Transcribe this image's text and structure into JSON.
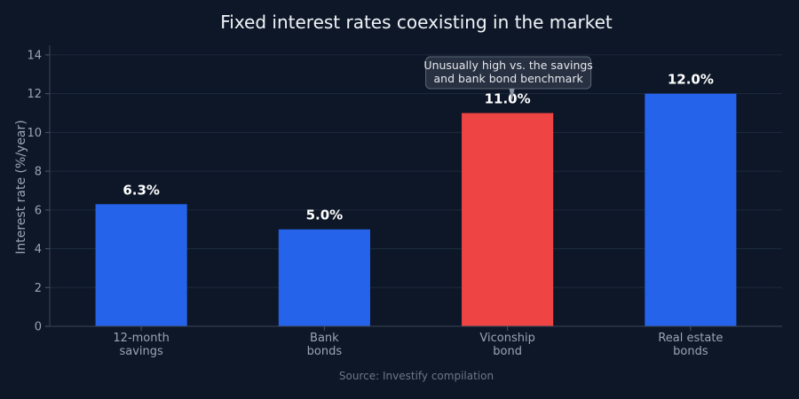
{
  "colors": {
    "background": "#0d1727",
    "default_bar": "#2563eb",
    "highlight_bar": "#ef4444",
    "grid": "#1c2a3d",
    "text": "#9aa4b2",
    "title": "#f1f5f9",
    "annotation_box": "#2a3444"
  },
  "chart_data": {
    "type": "bar",
    "title": "Fixed interest rates coexisting in the market",
    "xlabel": "",
    "ylabel": "Interest rate (%/year)",
    "ylim": [
      0,
      14.5
    ],
    "yticks": [
      0,
      2,
      4,
      6,
      8,
      10,
      12,
      14
    ],
    "grid": true,
    "categories": [
      [
        "12-month",
        "savings"
      ],
      [
        "Bank",
        "bonds"
      ],
      [
        "Viconship",
        "bond"
      ],
      [
        "Real estate",
        "bonds"
      ]
    ],
    "values": [
      6.3,
      5.0,
      11.0,
      12.0
    ],
    "value_labels": [
      "6.3%",
      "5.0%",
      "11.0%",
      "12.0%"
    ],
    "highlight_index": 2,
    "annotation": {
      "target_index": 2,
      "lines": [
        "Unusually high vs. the savings",
        "and bank bond benchmark"
      ]
    },
    "source": "Source: Investify compilation"
  }
}
